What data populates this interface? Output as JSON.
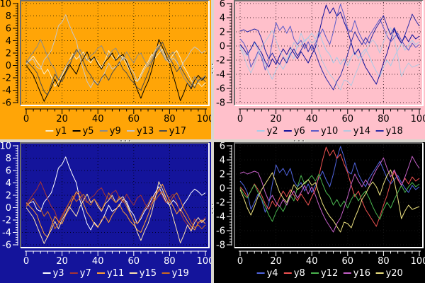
{
  "x_step": 2,
  "walks": {
    "L1": [
      0.2,
      0.8,
      1.0,
      -0.3,
      -0.6,
      0.9,
      1.6,
      2.4,
      4.2,
      6.4,
      7.0,
      8.2,
      6.6,
      5.2,
      4.0,
      1.2,
      -0.8,
      -2.6,
      -3.6,
      -2.4,
      -3.1,
      -2.2,
      -1.0,
      0.4,
      -0.6,
      -0.2,
      0.3,
      1.4,
      1.0,
      -0.4,
      -1.2,
      -2.6,
      -1.8,
      -0.6,
      0.2,
      1.4,
      2.4,
      3.4,
      2.2,
      1.0,
      0.4,
      1.2,
      0.6,
      -0.5,
      0.6,
      1.4,
      2.4,
      3.0,
      2.6,
      2.0,
      2.4
    ],
    "L2": [
      0.4,
      1.4,
      2.2,
      3.0,
      4.2,
      2.8,
      1.4,
      0.2,
      -0.6,
      -2.4,
      -1.2,
      -0.2,
      0.8,
      1.2,
      2.2,
      2.6,
      1.4,
      0.8,
      1.6,
      2.0,
      2.8,
      3.2,
      2.0,
      1.4,
      2.4,
      2.8,
      1.6,
      0.8,
      2.2,
      1.2,
      0.4,
      1.6,
      2.0,
      0.8,
      -0.2,
      0.8,
      2.2,
      3.0,
      1.8,
      0.8,
      1.6,
      2.2,
      0.9,
      -0.8,
      -2.0,
      -2.8,
      -3.5,
      -1.8,
      -2.6,
      -2.2,
      -1.6
    ],
    "L3": [
      0.8,
      0.2,
      -0.4,
      -1.2,
      -2.8,
      -4.2,
      -4.8,
      -3.0,
      -1.4,
      -2.2,
      -2.6,
      -1.2,
      -0.2,
      1.4,
      2.6,
      1.8,
      0.6,
      -0.8,
      -1.6,
      -2.6,
      -3.2,
      -2.0,
      -1.4,
      -2.4,
      -1.2,
      -0.4,
      0.6,
      -0.6,
      -1.2,
      -2.2,
      -2.8,
      -3.6,
      -4.0,
      -2.6,
      -1.2,
      0.4,
      1.8,
      2.8,
      3.8,
      2.4,
      1.2,
      0.2,
      -1.0,
      -0.2,
      -1.2,
      -2.2,
      -3.0,
      -3.6,
      -2.4,
      -2.0,
      -2.6
    ],
    "L4": [
      0.0,
      -0.8,
      -1.6,
      -3.0,
      -4.4,
      -5.8,
      -4.6,
      -3.6,
      -2.2,
      -3.4,
      -2.0,
      -1.0,
      0.2,
      -0.6,
      -1.4,
      0.2,
      1.2,
      2.2,
      0.8,
      1.4,
      0.2,
      -0.6,
      0.6,
      1.2,
      2.0,
      0.8,
      1.4,
      1.8,
      0.6,
      -0.8,
      -2.2,
      -4.0,
      -5.3,
      -3.8,
      -2.6,
      -0.8,
      1.6,
      4.2,
      3.0,
      1.6,
      0.4,
      -1.6,
      -3.6,
      -5.7,
      -4.4,
      -2.8,
      -3.8,
      -2.4,
      -1.6,
      -2.4,
      -1.8
    ],
    "L5": [
      0.2,
      0.9,
      1.5,
      0.6,
      -0.2,
      -1.4,
      -0.6,
      -1.8,
      -3.4,
      -2.6,
      -1.6,
      -0.4,
      0.8,
      1.9,
      1.0,
      1.6,
      2.2,
      1.0,
      0.4,
      1.4,
      0.6,
      -0.4,
      0.8,
      2.4,
      1.4,
      0.8,
      1.8,
      1.2,
      0.2,
      -1.0,
      -2.2,
      -2.6,
      -1.4,
      -0.2,
      0.6,
      1.8,
      1.2,
      2.0,
      2.6,
      1.4,
      0.8,
      1.8,
      2.4,
      1.2,
      -0.2,
      -1.2,
      -2.4,
      -3.2,
      -2.8,
      -3.4,
      -2.8
    ],
    "R1": [
      0.2,
      -0.4,
      -1.2,
      -0.4,
      0.6,
      -0.2,
      -1.0,
      -2.2,
      -3.0,
      -1.8,
      -2.6,
      -1.4,
      -0.4,
      -1.2,
      -0.2,
      -1.0,
      -1.8,
      -0.8,
      -1.6,
      -2.4,
      -1.2,
      -0.2,
      1.8,
      4.0,
      5.8,
      4.6,
      5.4,
      4.2,
      4.8,
      3.4,
      2.2,
      0.4,
      -1.2,
      -0.4,
      -1.8,
      -3.0,
      -3.8,
      -4.6,
      -5.4,
      -4.0,
      -2.4,
      -1.0,
      0.8,
      2.4,
      1.2,
      0.4,
      1.4,
      0.6,
      1.6,
      1.0,
      1.4
    ],
    "R2": [
      2.1,
      2.3,
      2.0,
      2.2,
      2.4,
      2.2,
      1.0,
      -0.6,
      -1.8,
      -1.0,
      -2.0,
      -2.6,
      -1.6,
      -2.4,
      -1.2,
      -0.4,
      -1.4,
      -0.6,
      0.4,
      -0.8,
      0.2,
      -1.0,
      -2.4,
      -3.6,
      -4.6,
      -5.4,
      -6.2,
      -5.0,
      -4.2,
      -2.8,
      -1.2,
      0.6,
      2.0,
      1.0,
      0.2,
      1.2,
      0.4,
      1.6,
      2.6,
      3.4,
      4.3,
      2.8,
      1.6,
      2.6,
      1.4,
      0.4,
      1.6,
      3.0,
      4.5,
      3.6,
      2.8
    ],
    "R3": [
      1.0,
      0.4,
      -0.6,
      -3.0,
      -2.0,
      -0.8,
      -1.6,
      -3.4,
      -2.2,
      0.6,
      3.3,
      2.2,
      2.8,
      1.8,
      2.8,
      1.0,
      0.2,
      0.8,
      -0.4,
      0.6,
      -0.6,
      0.4,
      1.4,
      2.4,
      1.2,
      0.2,
      2.0,
      4.2,
      5.9,
      4.4,
      2.4,
      2.0,
      3.6,
      2.0,
      1.0,
      0.2,
      1.4,
      2.2,
      3.0,
      3.8,
      2.6,
      1.4,
      0.6,
      1.2,
      1.8,
      0.8,
      0.0,
      -0.6,
      0.4,
      -0.2,
      0.2
    ],
    "R4": [
      0.0,
      -0.9,
      -1.4,
      -0.4,
      0.5,
      -0.6,
      -1.5,
      -2.6,
      -3.8,
      -4.7,
      -3.4,
      -2.5,
      -3.3,
      -2.2,
      -1.0,
      -1.8,
      0.2,
      1.8,
      0.6,
      1.2,
      1.8,
      1.0,
      2.0,
      0.6,
      -0.6,
      -1.2,
      -2.4,
      -1.6,
      -2.6,
      -1.8,
      -2.8,
      -1.6,
      -0.8,
      -1.8,
      -1.0,
      -0.4,
      -1.4,
      -2.6,
      -3.6,
      -4.4,
      -3.0,
      -2.0,
      -2.8,
      -1.6,
      -0.6,
      0.4,
      -0.6,
      0.2,
      0.8,
      0.2,
      0.6
    ],
    "R5": [
      -0.2,
      -1.4,
      -2.8,
      -3.8,
      -2.6,
      -1.2,
      -0.2,
      0.6,
      1.4,
      2.2,
      0.8,
      -0.6,
      -1.4,
      -2.0,
      -0.8,
      0.5,
      -0.2,
      0.2,
      0.8,
      1.2,
      0.4,
      0.8,
      -0.8,
      -2.2,
      -3.2,
      -4.0,
      -4.6,
      -5.4,
      -6.2,
      -4.8,
      -5.0,
      -5.6,
      -4.2,
      -3.0,
      -1.6,
      -0.8,
      0.2,
      0.9,
      0.2,
      -1.0,
      0.6,
      1.8,
      2.6,
      1.0,
      -1.4,
      -4.3,
      -3.2,
      -2.4,
      -3.0,
      -2.8,
      -2.6
    ]
  },
  "chart_data": [
    {
      "id": "top-left",
      "type": "line",
      "grid": true,
      "legend_position": "bottom",
      "background": "#FFA507",
      "text_color": "#000000",
      "grid_color": "#3a2a00",
      "x": {
        "min": 0,
        "max": 100,
        "major": 20,
        "minor": 4,
        "labels": [
          "0",
          "20",
          "40",
          "60",
          "80",
          "100"
        ]
      },
      "y": {
        "min": -6,
        "max": 10,
        "major": 2,
        "labels": [
          "10",
          "8",
          "6",
          "4",
          "2",
          "0",
          "-2",
          "-4",
          "-6"
        ]
      },
      "series": [
        {
          "label": "y1",
          "color": "#F6EDD0",
          "walk": "L5"
        },
        {
          "label": "y5",
          "color": "#000000",
          "walk": "L4"
        },
        {
          "label": "y9",
          "color": "#8C8C8C",
          "walk": "L2"
        },
        {
          "label": "y13",
          "color": "#C6C6CA",
          "walk": "L1"
        },
        {
          "label": "y17",
          "color": "#4C4C4C",
          "walk": "L3"
        }
      ]
    },
    {
      "id": "top-right",
      "type": "line",
      "grid": true,
      "legend_position": "bottom",
      "background": "#FFC0CB",
      "text_color": "#000000",
      "grid_color": "#4a2a33",
      "x": {
        "min": 0,
        "max": 100,
        "major": 20,
        "minor": 4,
        "labels": [
          "0",
          "20",
          "40",
          "60",
          "80",
          "100"
        ]
      },
      "y": {
        "min": -8,
        "max": 6,
        "major": 2,
        "labels": [
          "6",
          "4",
          "2",
          "0",
          "-2",
          "-4",
          "-6",
          "-8"
        ]
      },
      "series": [
        {
          "label": "y2",
          "color": "#A9CCE9",
          "walk": "R4"
        },
        {
          "label": "y6",
          "color": "#0F0F9B",
          "walk": "R1"
        },
        {
          "label": "y10",
          "color": "#5A5AC8",
          "walk": "R3"
        },
        {
          "label": "y14",
          "color": "#B4C8E0",
          "walk": "R5"
        },
        {
          "label": "y18",
          "color": "#2A2AA5",
          "walk": "R2"
        }
      ]
    },
    {
      "id": "bottom-left",
      "type": "line",
      "grid": true,
      "legend_position": "bottom",
      "background": "#14149B",
      "text_color": "#FFFFFF",
      "grid_color": "#000020",
      "x": {
        "min": 0,
        "max": 100,
        "major": 20,
        "minor": 4,
        "labels": [
          "0",
          "20",
          "40",
          "60",
          "80",
          "100"
        ]
      },
      "y": {
        "min": -6,
        "max": 10,
        "major": 2,
        "labels": [
          "10",
          "8",
          "6",
          "4",
          "2",
          "0",
          "-2",
          "-4",
          "-6"
        ]
      },
      "series": [
        {
          "label": "y3",
          "color": "#FFFFFF",
          "walk": "L1"
        },
        {
          "label": "y7",
          "color": "#A83434",
          "walk": "L2"
        },
        {
          "label": "y11",
          "color": "#FF9E33",
          "walk": "L3"
        },
        {
          "label": "y15",
          "color": "#FFE3AE",
          "walk": "L4"
        },
        {
          "label": "y19",
          "color": "#CF6A1F",
          "walk": "L5"
        }
      ]
    },
    {
      "id": "bottom-right",
      "type": "line",
      "grid": true,
      "legend_position": "bottom",
      "background": "#000000",
      "text_color": "#FFFFFF",
      "grid_color": "#161616",
      "x": {
        "min": 0,
        "max": 100,
        "major": 20,
        "minor": 4,
        "labels": [
          "0",
          "20",
          "40",
          "60",
          "80",
          "100"
        ]
      },
      "y": {
        "min": -8,
        "max": 6,
        "major": 2,
        "labels": [
          "6",
          "4",
          "2",
          "0",
          "-2",
          "-4",
          "-6",
          "-8"
        ]
      },
      "series": [
        {
          "label": "y4",
          "color": "#5064DE",
          "walk": "R3"
        },
        {
          "label": "y8",
          "color": "#F05252",
          "walk": "R1"
        },
        {
          "label": "y12",
          "color": "#49B34E",
          "walk": "R4"
        },
        {
          "label": "y16",
          "color": "#C560C8",
          "walk": "R2"
        },
        {
          "label": "y20",
          "color": "#EDE280",
          "walk": "R5"
        }
      ]
    }
  ]
}
